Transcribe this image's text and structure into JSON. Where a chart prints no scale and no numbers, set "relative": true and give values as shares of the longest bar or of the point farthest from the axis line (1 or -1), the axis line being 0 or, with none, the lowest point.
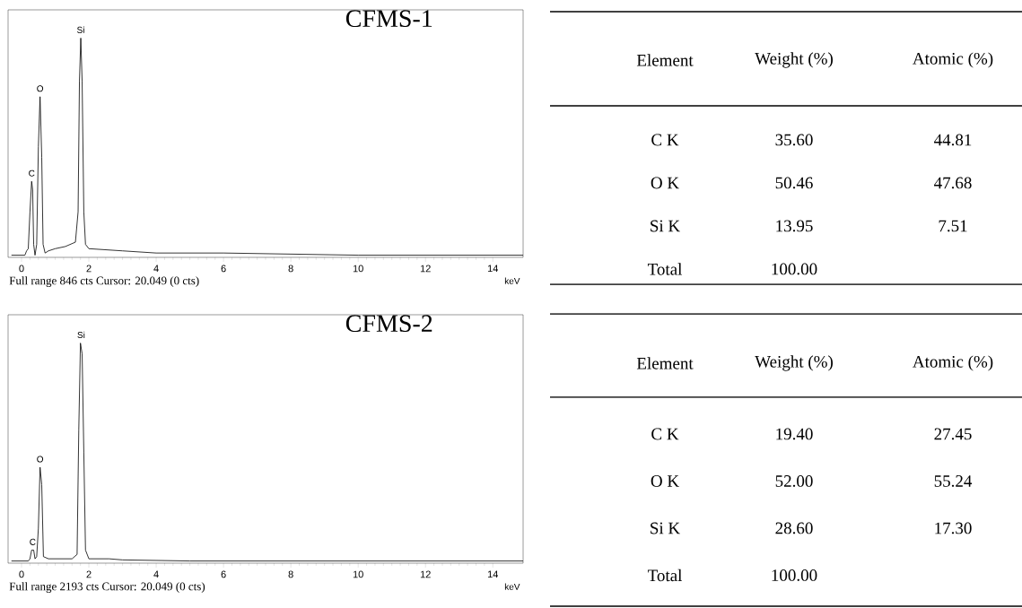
{
  "chart_data": [
    {
      "type": "line",
      "relative": true,
      "title": "CFMS-1",
      "xlabel": "keV",
      "xlim": [
        -0.4,
        14.9
      ],
      "xticks": [
        0,
        2,
        4,
        6,
        8,
        10,
        12,
        14
      ],
      "series": [
        {
          "color": "#000000",
          "x": [
            -0.3,
            0.1,
            0.15,
            0.2,
            0.25,
            0.3,
            0.33,
            0.36,
            0.4,
            0.45,
            0.5,
            0.55,
            0.6,
            0.64,
            0.7,
            0.8,
            1.0,
            1.3,
            1.6,
            1.68,
            1.72,
            1.76,
            1.8,
            1.85,
            1.9,
            2.0,
            3.0,
            4.0,
            6.0,
            8.0,
            10.0,
            14.9
          ],
          "values": [
            0,
            0,
            0.02,
            0.03,
            0.2,
            0.34,
            0.3,
            0.05,
            0,
            0.05,
            0.5,
            0.73,
            0.45,
            0.05,
            0.01,
            0.02,
            0.03,
            0.04,
            0.06,
            0.2,
            0.8,
            1,
            0.8,
            0.2,
            0.05,
            0.03,
            0.02,
            0.01,
            0.01,
            0.005,
            0,
            0
          ]
        }
      ],
      "annotations": [
        {
          "text": "C",
          "x": 0.3,
          "y": 0.34
        },
        {
          "text": "O",
          "x": 0.55,
          "y": 0.73
        },
        {
          "text": "Si",
          "x": 1.76,
          "y": 1
        },
        "Full range 846 cts Cursor: 20.049 (0 cts)"
      ]
    },
    {
      "type": "other",
      "categories": [
        "Element",
        "Weight (%)",
        "Atomic (%)"
      ],
      "y_categories": [
        "C K",
        "O K",
        "Si K",
        "Total"
      ],
      "cell_labels": [
        [
          "35.60",
          "44.81"
        ],
        [
          "50.46",
          "47.68"
        ],
        [
          "13.95",
          "7.51"
        ],
        [
          "100.00",
          null
        ]
      ]
    },
    {
      "type": "line",
      "relative": true,
      "title": "CFMS-2",
      "xlabel": "keV",
      "xlim": [
        -0.4,
        14.9
      ],
      "xticks": [
        0,
        2,
        4,
        6,
        8,
        10,
        12,
        14
      ],
      "series": [
        {
          "color": "#000000",
          "x": [
            -0.3,
            0.2,
            0.25,
            0.3,
            0.36,
            0.4,
            0.45,
            0.5,
            0.55,
            0.6,
            0.65,
            0.8,
            1.5,
            1.65,
            1.7,
            1.75,
            1.8,
            1.85,
            1.9,
            2.0,
            2.6,
            3.0,
            5.0,
            14.9
          ],
          "values": [
            0,
            0,
            0.01,
            0.05,
            0.05,
            0.01,
            0.02,
            0.15,
            0.43,
            0.35,
            0.02,
            0.01,
            0.01,
            0.03,
            0.6,
            1,
            0.95,
            0.5,
            0.05,
            0.01,
            0.01,
            0.005,
            0,
            0
          ]
        }
      ],
      "annotations": [
        {
          "text": "C",
          "x": 0.33,
          "y": 0.05
        },
        {
          "text": "O",
          "x": 0.55,
          "y": 0.43
        },
        {
          "text": "Si",
          "x": 1.77,
          "y": 1
        },
        "Full range 2193 cts Cursor: 20.049 (0 cts)"
      ]
    },
    {
      "type": "other",
      "categories": [
        "Element",
        "Weight (%)",
        "Atomic (%)"
      ],
      "y_categories": [
        "C K",
        "O K",
        "Si K",
        "Total"
      ],
      "cell_labels": [
        [
          "19.40",
          "27.45"
        ],
        [
          "52.00",
          "55.24"
        ],
        [
          "28.60",
          "17.30"
        ],
        [
          "100.00",
          null
        ]
      ]
    }
  ]
}
